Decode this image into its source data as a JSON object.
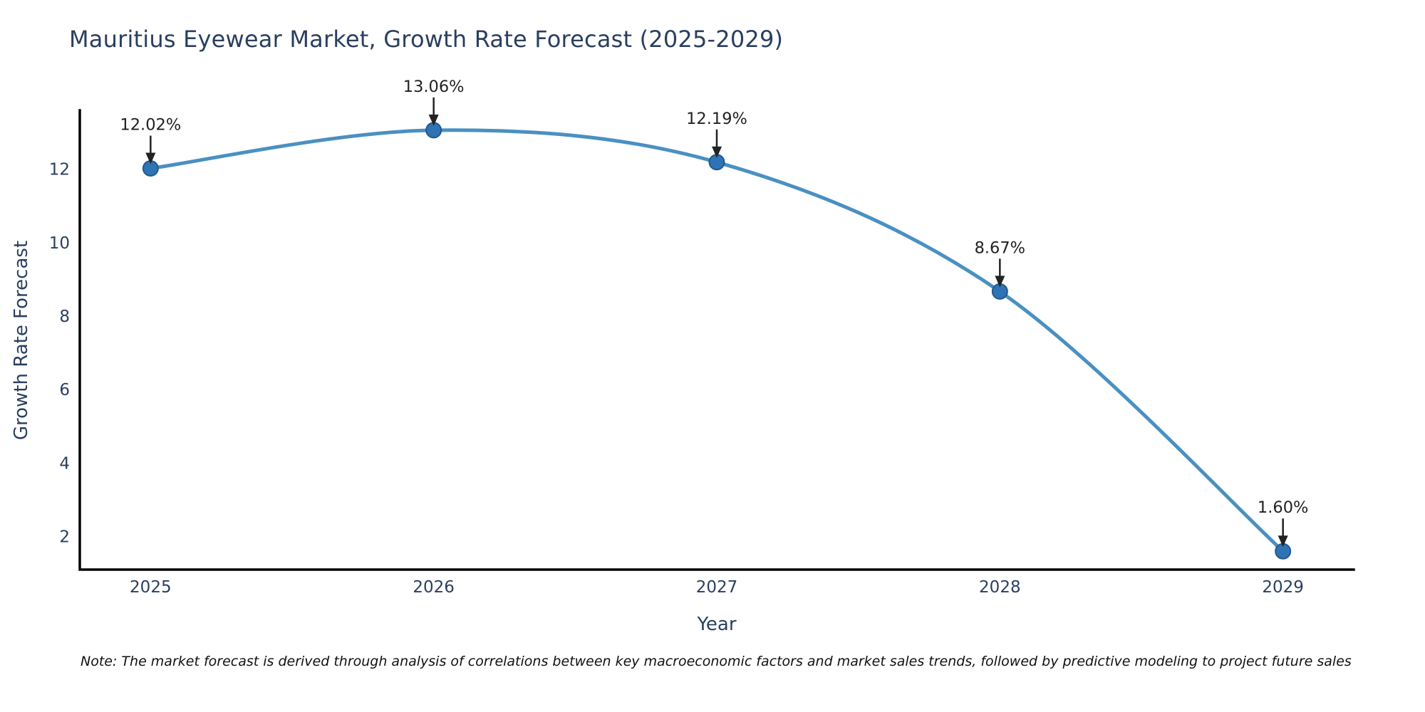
{
  "title": "Mauritius Eyewear Market, Growth Rate Forecast (2025-2029)",
  "note": "Note: The market forecast is derived through analysis of correlations between key macroeconomic factors and market sales trends, followed by predictive modeling to project future sales",
  "chart_data": {
    "type": "line",
    "title": "Mauritius Eyewear Market, Growth Rate Forecast (2025-2029)",
    "xlabel": "Year",
    "ylabel": "Growth Rate Forecast",
    "x": [
      2025,
      2026,
      2027,
      2028,
      2029
    ],
    "series": [
      {
        "name": "Growth Rate Forecast",
        "values": [
          12.02,
          13.06,
          12.19,
          8.67,
          1.6
        ]
      }
    ],
    "point_labels": [
      "12.02%",
      "13.06%",
      "12.19%",
      "8.67%",
      "1.60%"
    ],
    "xticks": [
      2025,
      2026,
      2027,
      2028,
      2029
    ],
    "yticks": [
      2,
      4,
      6,
      8,
      10,
      12
    ],
    "xlim": [
      2024.75,
      2029.25
    ],
    "ylim": [
      1.1,
      13.6
    ],
    "grid": false,
    "legend_position": "none",
    "line_shape": "spline",
    "colors": {
      "line": "#4a90c2",
      "marker": "#2e74b5",
      "marker_edge": "#24588c",
      "axis": "#000000",
      "tick_text": "#2a3f5f",
      "annotation": "#222222",
      "background": "#ffffff"
    }
  }
}
